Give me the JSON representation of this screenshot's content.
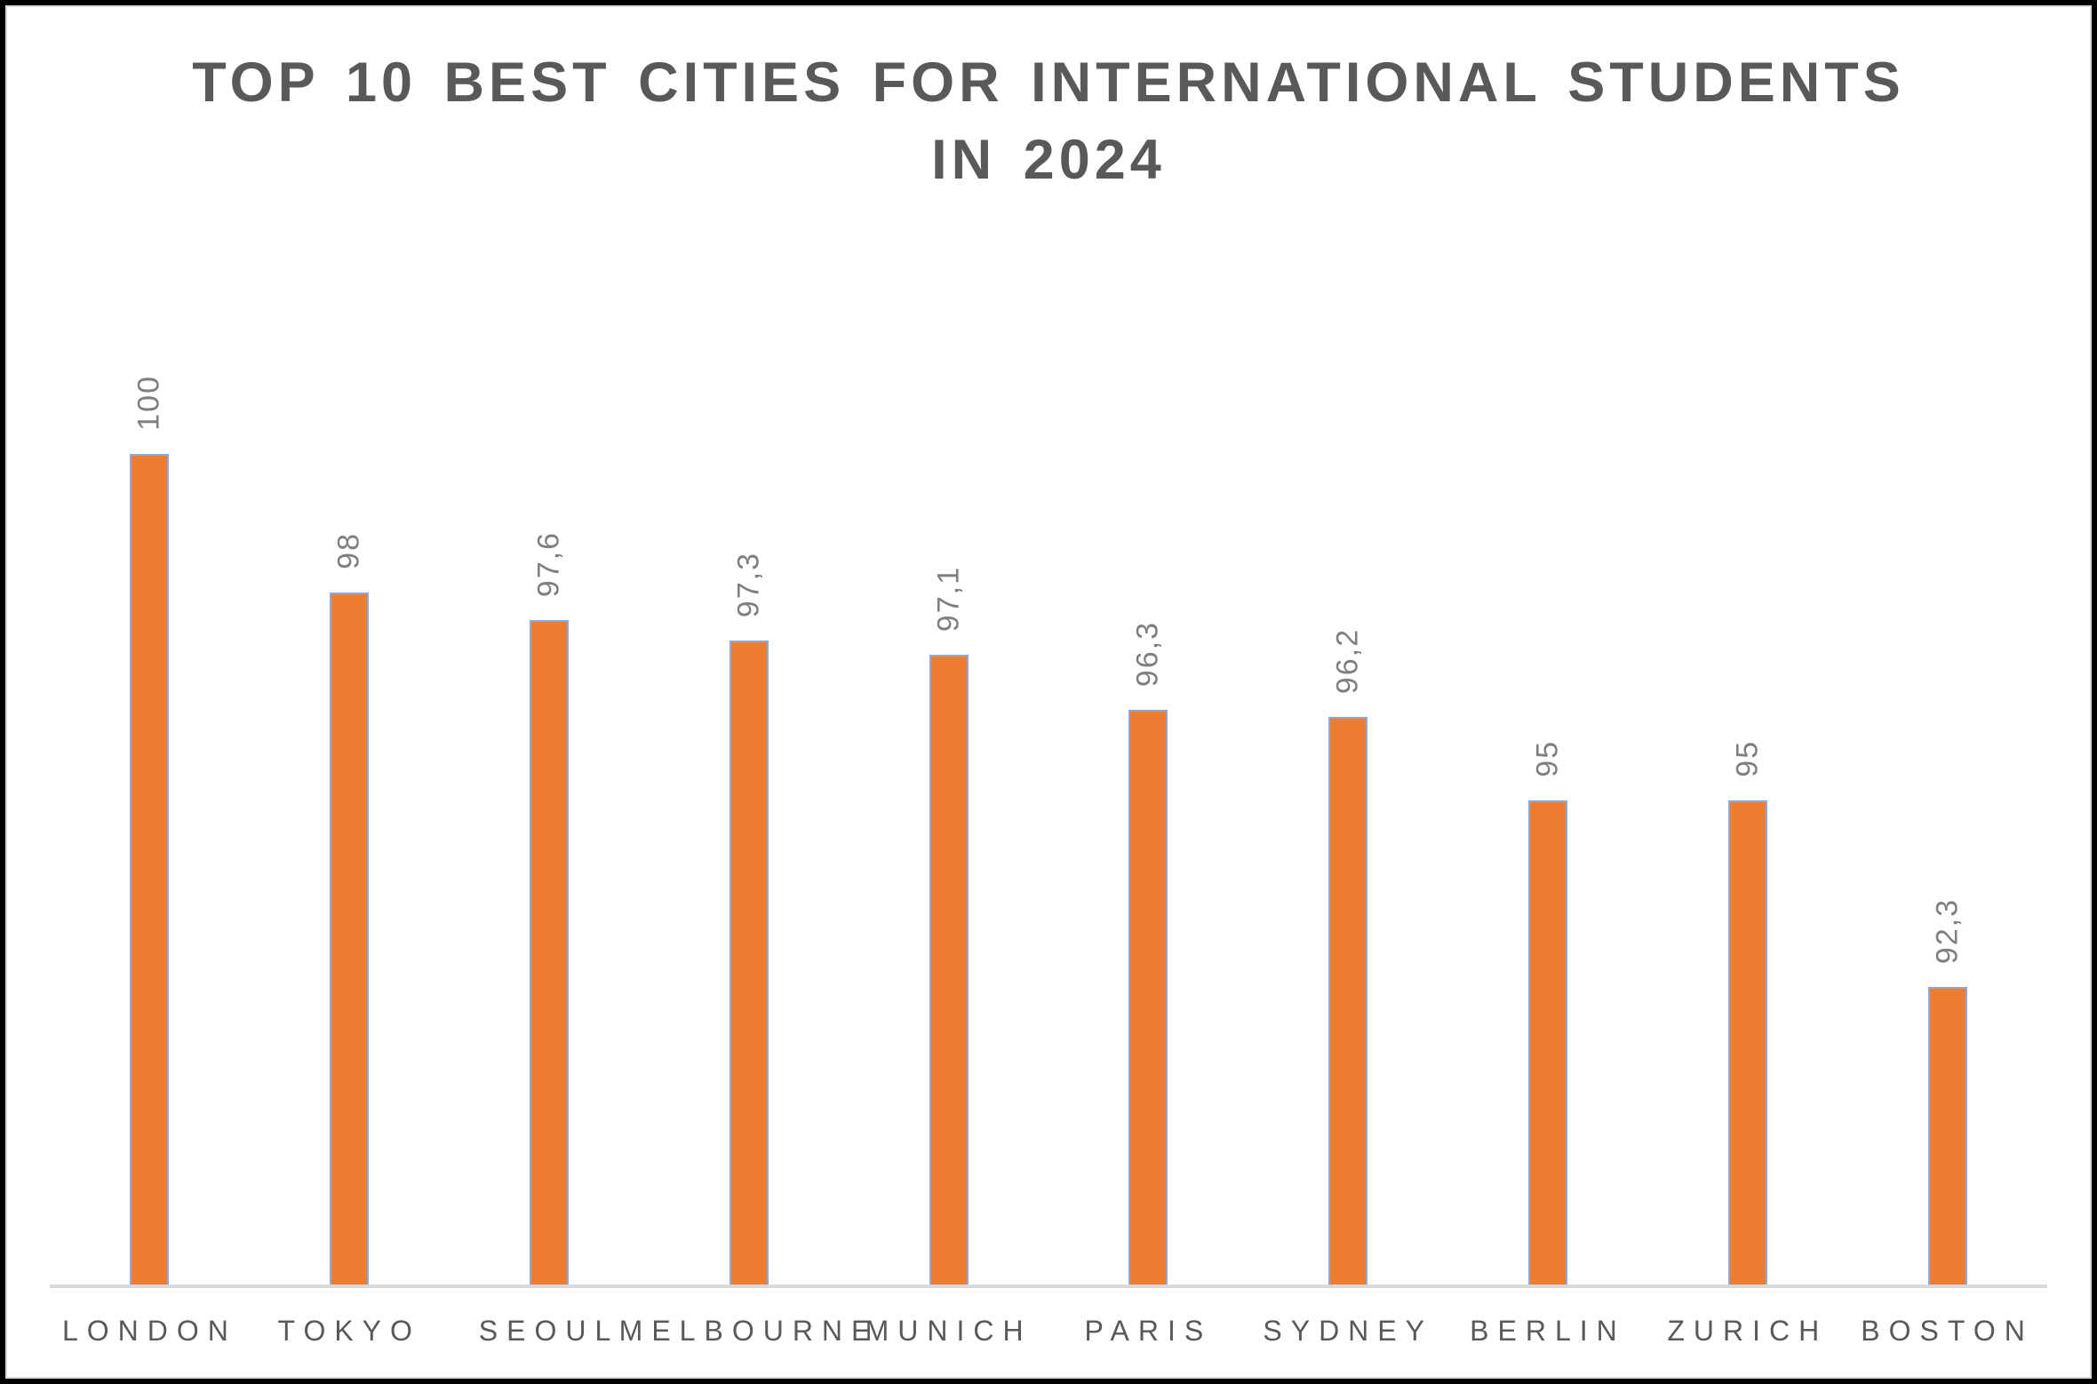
{
  "chart": {
    "title_line1": "TOP 10 BEST CITIES FOR INTERNATIONAL STUDENTS",
    "title_line2": "IN 2024"
  },
  "chart_data": {
    "type": "bar",
    "title": "TOP 10 BEST CITIES FOR INTERNATIONAL STUDENTS IN 2024",
    "categories": [
      "LONDON",
      "TOKYO",
      "SEOUL",
      "MELBOURNE",
      "MUNICH",
      "PARIS",
      "SYDNEY",
      "BERLIN",
      "ZURICH",
      "BOSTON"
    ],
    "values": [
      100,
      98,
      97.6,
      97.3,
      97.1,
      96.3,
      96.2,
      95,
      95,
      92.3
    ],
    "value_labels": [
      "100",
      "98",
      "97,6",
      "97,3",
      "97,1",
      "96,3",
      "96,2",
      "95",
      "95",
      "92,3"
    ],
    "xlabel": "",
    "ylabel": "",
    "ylim": [
      88,
      100
    ],
    "grid": false,
    "legend": false,
    "decimal_separator": ",",
    "bar_color": "#ED7D31",
    "bar_border_color": "#8EA9DB",
    "value_label_color": "#7F7F7F",
    "axis_label_color": "#595959",
    "title_color": "#595959",
    "axis_line_color": "#D9D9D9"
  }
}
